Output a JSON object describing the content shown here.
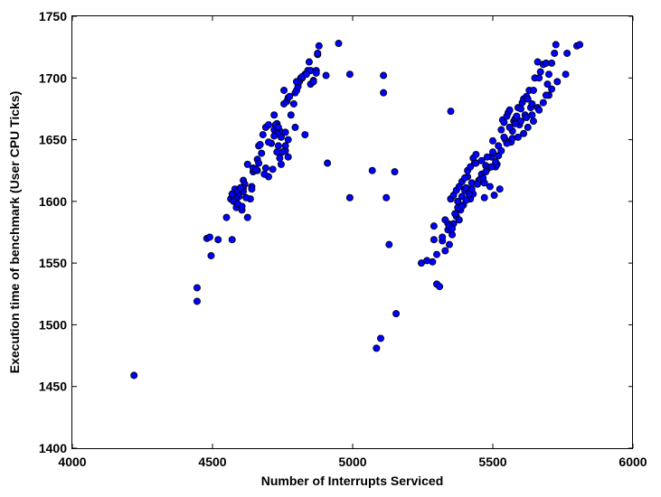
{
  "colors": {
    "marker": "#0000ff",
    "marker_edge": "#000000",
    "axes": "#000000",
    "background": "#ffffff"
  },
  "chart_data": {
    "type": "scatter",
    "title": "",
    "xlabel": "Number of Interrupts Serviced",
    "ylabel": "Execution time of benchmark (User CPU Ticks)",
    "xlim": [
      4000,
      6000
    ],
    "ylim": [
      1400,
      1750
    ],
    "xticks": [
      4000,
      4500,
      5000,
      5500,
      6000
    ],
    "yticks": [
      1400,
      1450,
      1500,
      1550,
      1600,
      1650,
      1700,
      1750
    ],
    "xtick_labels": [
      "4000",
      "4500",
      "5000",
      "5500",
      "6000"
    ],
    "ytick_labels": [
      "1400",
      "1450",
      "1500",
      "1550",
      "1600",
      "1650",
      "1700",
      "1750"
    ],
    "grid": false,
    "legend": "none",
    "series": [
      {
        "x": [
          4220,
          4445,
          4445,
          4480,
          4490,
          4495,
          4520,
          4550,
          4570,
          4565,
          4575,
          4585,
          4570,
          4580,
          4590,
          4600,
          4595,
          4605,
          4610,
          4615,
          4610,
          4625,
          4635,
          4640,
          4645,
          4650,
          4660,
          4665,
          4670,
          4680,
          4690,
          4700,
          4690,
          4710,
          4720,
          4715,
          4720,
          4730,
          4730,
          4740,
          4745,
          4755,
          4760,
          4760,
          4770,
          4765,
          4770,
          4780,
          4790,
          4795,
          4800,
          4805,
          4810,
          4800,
          4820,
          4830,
          4840,
          4845,
          4850,
          4860,
          4870,
          4875,
          4880,
          4875,
          4905,
          4950,
          4830,
          4795,
          4770,
          4760,
          4750,
          4735,
          4725,
          4730,
          4740,
          4745,
          4775,
          4815,
          4820,
          4835,
          4850,
          4860,
          4870,
          4700,
          4685,
          4660,
          4645,
          4625,
          4610,
          4600,
          4585,
          4575,
          4590,
          4605,
          4620,
          4640,
          4655,
          4665,
          4675,
          4700,
          4720,
          4735,
          4755
        ],
        "y": [
          1459,
          1530,
          1519,
          1570,
          1571,
          1556,
          1569,
          1587,
          1569,
          1602,
          1604,
          1595,
          1606,
          1610,
          1608,
          1611,
          1604,
          1593,
          1617,
          1614,
          1611,
          1587,
          1602,
          1612,
          1624,
          1626,
          1634,
          1645,
          1646,
          1654,
          1660,
          1662,
          1627,
          1647,
          1658,
          1626,
          1670,
          1663,
          1640,
          1657,
          1652,
          1679,
          1641,
          1656,
          1636,
          1681,
          1684,
          1670,
          1679,
          1688,
          1690,
          1693,
          1697,
          1697,
          1700,
          1703,
          1706,
          1713,
          1706,
          1698,
          1706,
          1719,
          1726,
          1720,
          1702,
          1728,
          1654,
          1660,
          1650,
          1645,
          1640,
          1645,
          1662,
          1655,
          1635,
          1630,
          1685,
          1700,
          1701,
          1703,
          1695,
          1697,
          1704,
          1620,
          1622,
          1625,
          1627,
          1630,
          1608,
          1611,
          1602,
          1600,
          1598,
          1596,
          1603,
          1610,
          1626,
          1631,
          1639,
          1648,
          1653,
          1660,
          1690
        ]
      },
      {
        "x": [
          4910,
          4990,
          4990,
          5070,
          5085,
          5100,
          5110,
          5110,
          5120,
          5130,
          5150,
          5155,
          5245,
          5265,
          5285,
          5300,
          5290,
          5300,
          5290,
          5310,
          5320,
          5330,
          5340,
          5345,
          5350,
          5355,
          5360,
          5370,
          5375,
          5380,
          5385,
          5390,
          5395,
          5400,
          5405,
          5410,
          5420,
          5425,
          5430,
          5430,
          5435,
          5440,
          5450,
          5460,
          5465,
          5470,
          5470,
          5475,
          5480,
          5490,
          5495,
          5500,
          5505,
          5510,
          5515,
          5520,
          5525,
          5530,
          5535,
          5540,
          5545,
          5550,
          5555,
          5560,
          5565,
          5570,
          5575,
          5580,
          5585,
          5590,
          5595,
          5600,
          5605,
          5610,
          5615,
          5620,
          5625,
          5630,
          5635,
          5640,
          5645,
          5650,
          5660,
          5665,
          5670,
          5680,
          5690,
          5695,
          5700,
          5710,
          5720,
          5725,
          5730,
          5760,
          5765,
          5800,
          5810,
          5340,
          5330,
          5320,
          5350,
          5360,
          5370,
          5380,
          5390,
          5400,
          5410,
          5420,
          5440,
          5460,
          5480,
          5500,
          5520,
          5540,
          5560,
          5580,
          5600,
          5620,
          5640,
          5660,
          5680,
          5700,
          5350,
          5345,
          5355,
          5365,
          5375,
          5390,
          5405,
          5415,
          5425,
          5445,
          5455,
          5465,
          5475,
          5495,
          5510,
          5530,
          5550,
          5570,
          5590,
          5610,
          5625,
          5645,
          5665,
          5690,
          5710
        ],
        "y": [
          1631,
          1703,
          1603,
          1625,
          1481,
          1489,
          1688,
          1702,
          1603,
          1565,
          1624,
          1509,
          1550,
          1552,
          1551,
          1557,
          1580,
          1533,
          1569,
          1531,
          1568,
          1585,
          1577,
          1565,
          1602,
          1573,
          1582,
          1588,
          1600,
          1585,
          1593,
          1604,
          1597,
          1609,
          1611,
          1620,
          1602,
          1615,
          1606,
          1635,
          1631,
          1638,
          1617,
          1622,
          1616,
          1615,
          1603,
          1629,
          1626,
          1612,
          1636,
          1649,
          1605,
          1628,
          1630,
          1637,
          1610,
          1658,
          1666,
          1664,
          1650,
          1669,
          1672,
          1674,
          1648,
          1657,
          1665,
          1667,
          1669,
          1676,
          1662,
          1675,
          1680,
          1683,
          1670,
          1685,
          1683,
          1690,
          1676,
          1679,
          1690,
          1700,
          1713,
          1700,
          1705,
          1711,
          1712,
          1695,
          1703,
          1712,
          1720,
          1727,
          1697,
          1703,
          1720,
          1726,
          1727,
          1582,
          1560,
          1571,
          1602,
          1605,
          1609,
          1612,
          1616,
          1619,
          1625,
          1628,
          1631,
          1633,
          1636,
          1640,
          1645,
          1652,
          1660,
          1663,
          1665,
          1668,
          1670,
          1676,
          1680,
          1686,
          1673,
          1580,
          1578,
          1590,
          1595,
          1596,
          1601,
          1606,
          1610,
          1614,
          1618,
          1619,
          1624,
          1628,
          1632,
          1641,
          1647,
          1651,
          1652,
          1655,
          1660,
          1665,
          1674,
          1686,
          1691
        ]
      }
    ]
  }
}
